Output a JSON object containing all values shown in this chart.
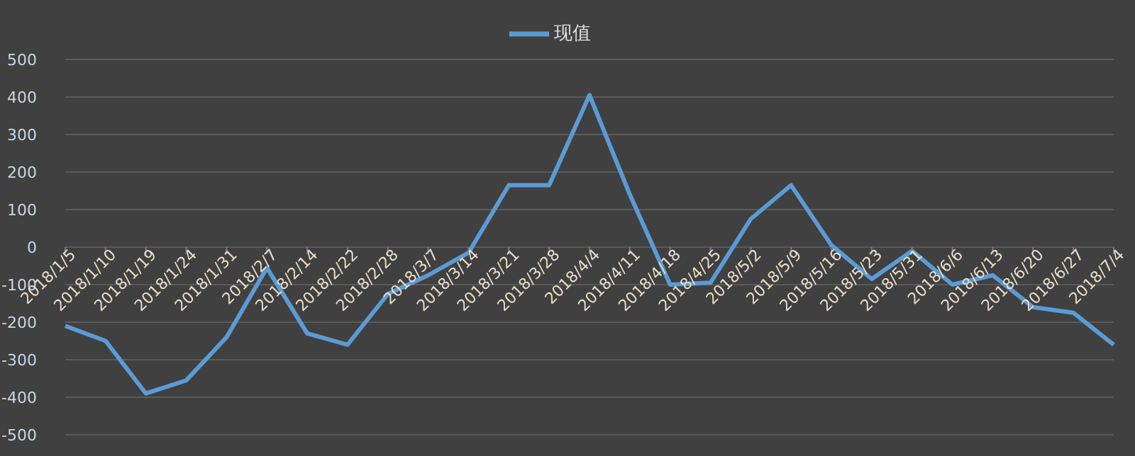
{
  "chart_data": {
    "type": "line",
    "categories": [
      "2018/1/5",
      "2018/1/10",
      "2018/1/19",
      "2018/1/24",
      "2018/1/31",
      "2018/2/7",
      "2018/2/14",
      "2018/2/22",
      "2018/2/28",
      "2018/3/7",
      "2018/3/14",
      "2018/3/21",
      "2018/3/28",
      "2018/4/4",
      "2018/4/11",
      "2018/4/18",
      "2018/4/25",
      "2018/5/2",
      "2018/5/9",
      "2018/5/16",
      "2018/5/23",
      "2018/5/31",
      "2018/6/6",
      "2018/6/13",
      "2018/6/20",
      "2018/6/27",
      "2018/7/4"
    ],
    "series": [
      {
        "name": "现值",
        "color": "#5b9bd5",
        "values": [
          -210,
          -250,
          -390,
          -355,
          -240,
          -55,
          -230,
          -260,
          -125,
          -75,
          -15,
          165,
          165,
          405,
          140,
          -100,
          -95,
          75,
          165,
          5,
          -85,
          -10,
          -100,
          -75,
          -160,
          -175,
          -260
        ]
      }
    ],
    "ylim": [
      -500,
      500
    ],
    "yticks": [
      -500,
      -400,
      -300,
      -200,
      -100,
      0,
      100,
      200,
      300,
      400,
      500
    ],
    "grid": "y",
    "legend": "top",
    "marker": "none",
    "line_style": "solid"
  }
}
